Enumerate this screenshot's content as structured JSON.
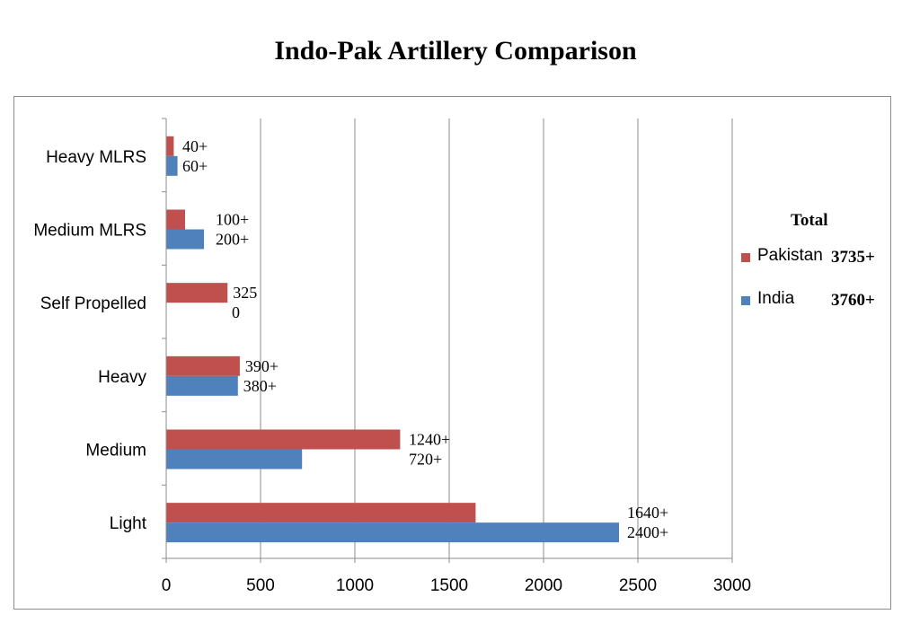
{
  "chart_data": {
    "type": "bar",
    "orientation": "horizontal",
    "title": "Indo-Pak Artillery Comparison",
    "categories": [
      "Heavy MLRS",
      "Medium MLRS",
      "Self Propelled",
      "Heavy",
      "Medium",
      "Light"
    ],
    "series": [
      {
        "name": "Pakistan",
        "color": "#c0504d",
        "values": [
          40,
          100,
          325,
          390,
          1240,
          1640
        ],
        "labels": [
          "40+",
          "100+",
          "325",
          "390+",
          "1240+",
          "1640+"
        ]
      },
      {
        "name": "India",
        "color": "#4f81bd",
        "values": [
          60,
          200,
          0,
          380,
          720,
          2400
        ],
        "labels": [
          "60+",
          "200+",
          "0",
          "380+",
          "720+",
          "2400+"
        ]
      }
    ],
    "xlim": [
      0,
      3000
    ],
    "xticks": [
      "0",
      "500",
      "1000",
      "1500",
      "2000",
      "2500",
      "3000"
    ],
    "grid": "vertical",
    "legend": {
      "position": "right",
      "title": "Total",
      "totals": [
        "3735+",
        "3760+"
      ]
    }
  }
}
